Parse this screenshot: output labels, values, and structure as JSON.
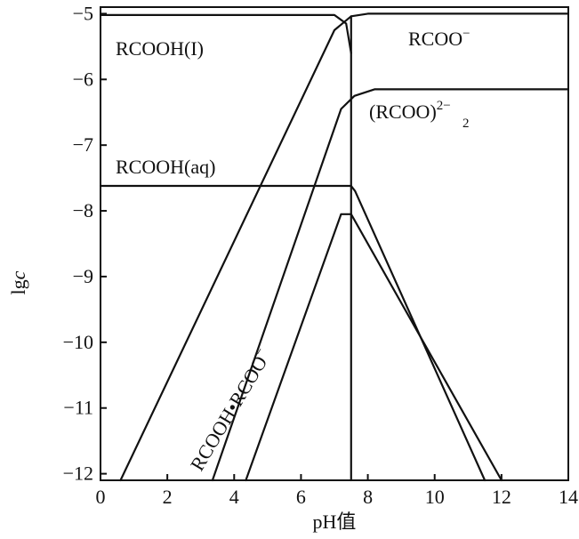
{
  "chart_data": {
    "type": "line",
    "title": "",
    "xlabel": "pH值",
    "ylabel_main": "lg",
    "ylabel_italic": "c",
    "xlim": [
      0,
      14
    ],
    "ylim": [
      -12.1,
      -4.9
    ],
    "xticks": [
      0,
      2,
      4,
      6,
      8,
      10,
      12,
      14
    ],
    "yticks": [
      -5,
      -6,
      -7,
      -8,
      -9,
      -10,
      -11,
      -12
    ],
    "xtick_labels": [
      "0",
      "2",
      "4",
      "6",
      "8",
      "10",
      "12",
      "14"
    ],
    "ytick_labels": [
      "−5",
      "−6",
      "−7",
      "−8",
      "−9",
      "−10",
      "−11",
      "−12"
    ],
    "vertical_line_x": 7.5,
    "series": [
      {
        "key": "rcooh-l",
        "label_main": "RCOOH(I)",
        "label_sup": "",
        "label_sub": "",
        "points": [
          [
            0,
            -5.02
          ],
          [
            7.0,
            -5.02
          ],
          [
            7.35,
            -5.15
          ],
          [
            7.5,
            -5.6
          ]
        ]
      },
      {
        "key": "rcoo-minus",
        "label_main": "RCOO",
        "label_sup": "−",
        "label_sub": "",
        "points": [
          [
            0.6,
            -12.1
          ],
          [
            7.0,
            -5.25
          ],
          [
            7.5,
            -5.04
          ],
          [
            8.0,
            -5.0
          ],
          [
            14,
            -5.0
          ]
        ]
      },
      {
        "key": "rcoo2",
        "label_main": "(RCOO)",
        "label_sup": "2−",
        "label_sub": "2",
        "points": [
          [
            3.35,
            -12.1
          ],
          [
            7.2,
            -6.45
          ],
          [
            7.6,
            -6.25
          ],
          [
            8.2,
            -6.15
          ],
          [
            14,
            -6.15
          ]
        ]
      },
      {
        "key": "rcooh-aq",
        "label_main": "RCOOH(aq)",
        "label_sup": "",
        "label_sub": "",
        "points": [
          [
            0,
            -7.62
          ],
          [
            7.5,
            -7.62
          ],
          [
            7.62,
            -7.7
          ],
          [
            11.5,
            -12.1
          ]
        ]
      },
      {
        "key": "rcooh-rcoo",
        "label_main": "RCOOH•RCOO",
        "label_sup": "−",
        "label_sub": "",
        "points": [
          [
            4.35,
            -12.1
          ],
          [
            7.2,
            -8.05
          ],
          [
            7.5,
            -8.05
          ],
          [
            12.0,
            -12.1
          ]
        ]
      }
    ]
  }
}
